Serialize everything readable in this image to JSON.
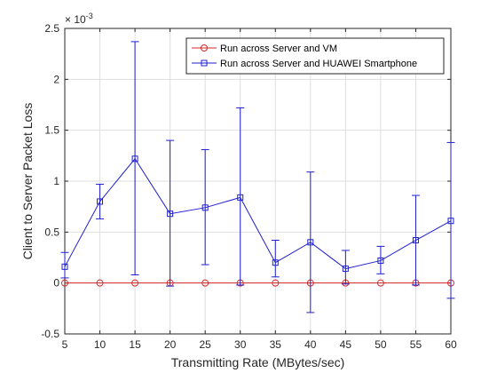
{
  "chart_data": {
    "type": "line",
    "xlabel": "Transmitting Rate (MBytes/sec)",
    "ylabel": "Client to Server Packet Loss",
    "exponent_base": "× 10",
    "exponent_power": "-3",
    "xlim": [
      5,
      60
    ],
    "ylim": [
      -0.5,
      2.5
    ],
    "xticks": [
      "5",
      "10",
      "15",
      "20",
      "25",
      "30",
      "35",
      "40",
      "45",
      "50",
      "55",
      "60"
    ],
    "yticks": [
      "-0.5",
      "0",
      "0.5",
      "1",
      "1.5",
      "2",
      "2.5"
    ],
    "grid": true,
    "legend_position": "top-right",
    "x": [
      5,
      10,
      15,
      20,
      25,
      30,
      35,
      40,
      45,
      50,
      55,
      60
    ],
    "series": [
      {
        "name": "Run across Server and VM",
        "color": "#d62728",
        "marker": "circle",
        "values": [
          0,
          0,
          0,
          0,
          0,
          0,
          0,
          0,
          0,
          0,
          0,
          0
        ]
      },
      {
        "name": "Run across Server and HUAWEI Smartphone",
        "color": "#1f1fd1",
        "marker": "square",
        "values": [
          0.16,
          0.8,
          1.22,
          0.68,
          0.74,
          0.84,
          0.2,
          0.4,
          0.14,
          0.22,
          0.42,
          0.61
        ],
        "error_low": [
          0.05,
          0.63,
          0.08,
          -0.03,
          0.18,
          -0.02,
          0.06,
          -0.29,
          -0.01,
          0.09,
          -0.02,
          -0.15
        ],
        "error_high": [
          0.3,
          0.97,
          2.37,
          1.4,
          1.31,
          1.72,
          0.42,
          1.09,
          0.32,
          0.36,
          0.86,
          1.38
        ]
      }
    ]
  }
}
